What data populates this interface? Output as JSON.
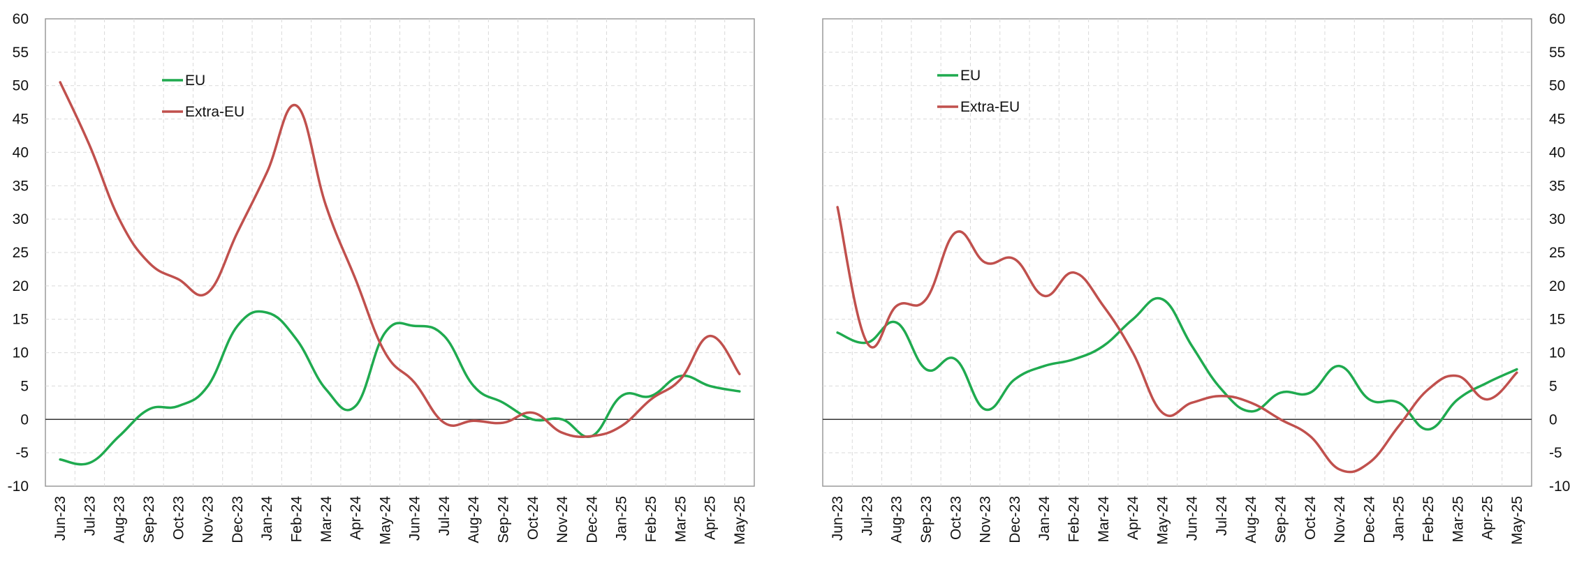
{
  "chart_data": [
    {
      "type": "line",
      "title": "",
      "xlabel": "",
      "ylabel": "",
      "ylim": [
        -10,
        60
      ],
      "yticks": [
        -10,
        -5,
        0,
        5,
        10,
        15,
        20,
        25,
        30,
        35,
        40,
        45,
        50,
        55,
        60
      ],
      "y_axis_side": "left",
      "grid": true,
      "legend_position": "top-left",
      "categories": [
        "Jun-23",
        "Jul-23",
        "Aug-23",
        "Sep-23",
        "Oct-23",
        "Nov-23",
        "Dec-23",
        "Jan-24",
        "Feb-24",
        "Mar-24",
        "Apr-24",
        "May-24",
        "Jun-24",
        "Jul-24",
        "Aug-24",
        "Sep-24",
        "Oct-24",
        "Nov-24",
        "Dec-24",
        "Jan-25",
        "Feb-25",
        "Mar-25",
        "Apr-25",
        "May-25"
      ],
      "series": [
        {
          "name": "EU",
          "color": "#1faa4f",
          "values": [
            -6,
            -6.5,
            -2.5,
            1.5,
            2,
            5,
            14,
            16,
            12,
            4.5,
            2,
            13,
            14,
            12.5,
            5,
            2.5,
            0,
            0,
            -2.5,
            3.5,
            3.5,
            6.5,
            5,
            4.2
          ]
        },
        {
          "name": "Extra-EU",
          "color": "#c0504d",
          "values": [
            50.5,
            41,
            30,
            23.5,
            21,
            19,
            28,
            37,
            47,
            32,
            21,
            10,
            5.5,
            -0.5,
            -0.2,
            -0.5,
            1,
            -2,
            -2.5,
            -1,
            3,
            6,
            12.5,
            6.8
          ]
        }
      ]
    },
    {
      "type": "line",
      "title": "",
      "xlabel": "",
      "ylabel": "",
      "ylim": [
        -10,
        60
      ],
      "yticks": [
        -10,
        -5,
        0,
        5,
        10,
        15,
        20,
        25,
        30,
        35,
        40,
        45,
        50,
        55,
        60
      ],
      "y_axis_side": "right",
      "grid": true,
      "legend_position": "top-left",
      "categories": [
        "Jun-23",
        "Jul-23",
        "Aug-23",
        "Sep-23",
        "Oct-23",
        "Nov-23",
        "Dec-23",
        "Jan-24",
        "Feb-24",
        "Mar-24",
        "Apr-24",
        "May-24",
        "Jun-24",
        "Jul-24",
        "Aug-24",
        "Sep-24",
        "Oct-24",
        "Nov-24",
        "Dec-24",
        "Jan-25",
        "Feb-25",
        "Mar-25",
        "Apr-25",
        "May-25"
      ],
      "series": [
        {
          "name": "EU",
          "color": "#1faa4f",
          "values": [
            13,
            11.5,
            14.5,
            7.5,
            9,
            1.5,
            6,
            8,
            9,
            11,
            15,
            18,
            11,
            4.5,
            1.2,
            4,
            4,
            8,
            3,
            2.5,
            -1.5,
            3,
            5.5,
            7.5
          ]
        },
        {
          "name": "Extra-EU",
          "color": "#c0504d",
          "values": [
            31.8,
            11.5,
            17,
            18,
            28,
            23.5,
            24,
            18.5,
            22,
            17,
            10,
            1,
            2.5,
            3.5,
            2.5,
            0,
            -2.5,
            -7.5,
            -6.5,
            -1,
            4.5,
            6.5,
            3,
            7
          ]
        }
      ]
    }
  ]
}
